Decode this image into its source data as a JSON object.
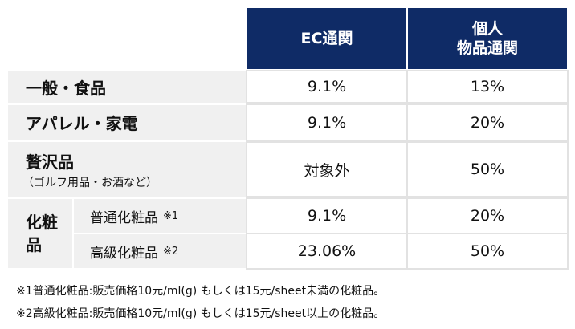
{
  "header": {
    "ec_label": "EC通関",
    "personal_line1": "個人",
    "personal_line2": "物品通関"
  },
  "rows": {
    "general": {
      "label": "一般・食品",
      "ec": "9.1%",
      "personal": "13%"
    },
    "apparel": {
      "label": "アパレル・家電",
      "ec": "9.1%",
      "personal": "20%"
    },
    "luxury": {
      "label": "贅沢品",
      "sublabel": "（ゴルフ用品・お酒など）",
      "ec": "対象外",
      "personal": "50%"
    },
    "cosmetics": {
      "label_line1": "化粧",
      "label_line2": "品",
      "normal": {
        "label": "普通化粧品",
        "note": "※1",
        "ec": "9.1%",
        "personal": "20%"
      },
      "premium": {
        "label": "高級化粧品",
        "note": "※2",
        "ec": "23.06%",
        "personal": "50%"
      }
    }
  },
  "footnotes": [
    "※1普通化粧品:販売価格10元/ml(g) もしくは15元/sheet未満の化粧品。",
    "※2高級化粧品:販売価格10元/ml(g) もしくは15元/sheet以上の化粧品。"
  ]
}
